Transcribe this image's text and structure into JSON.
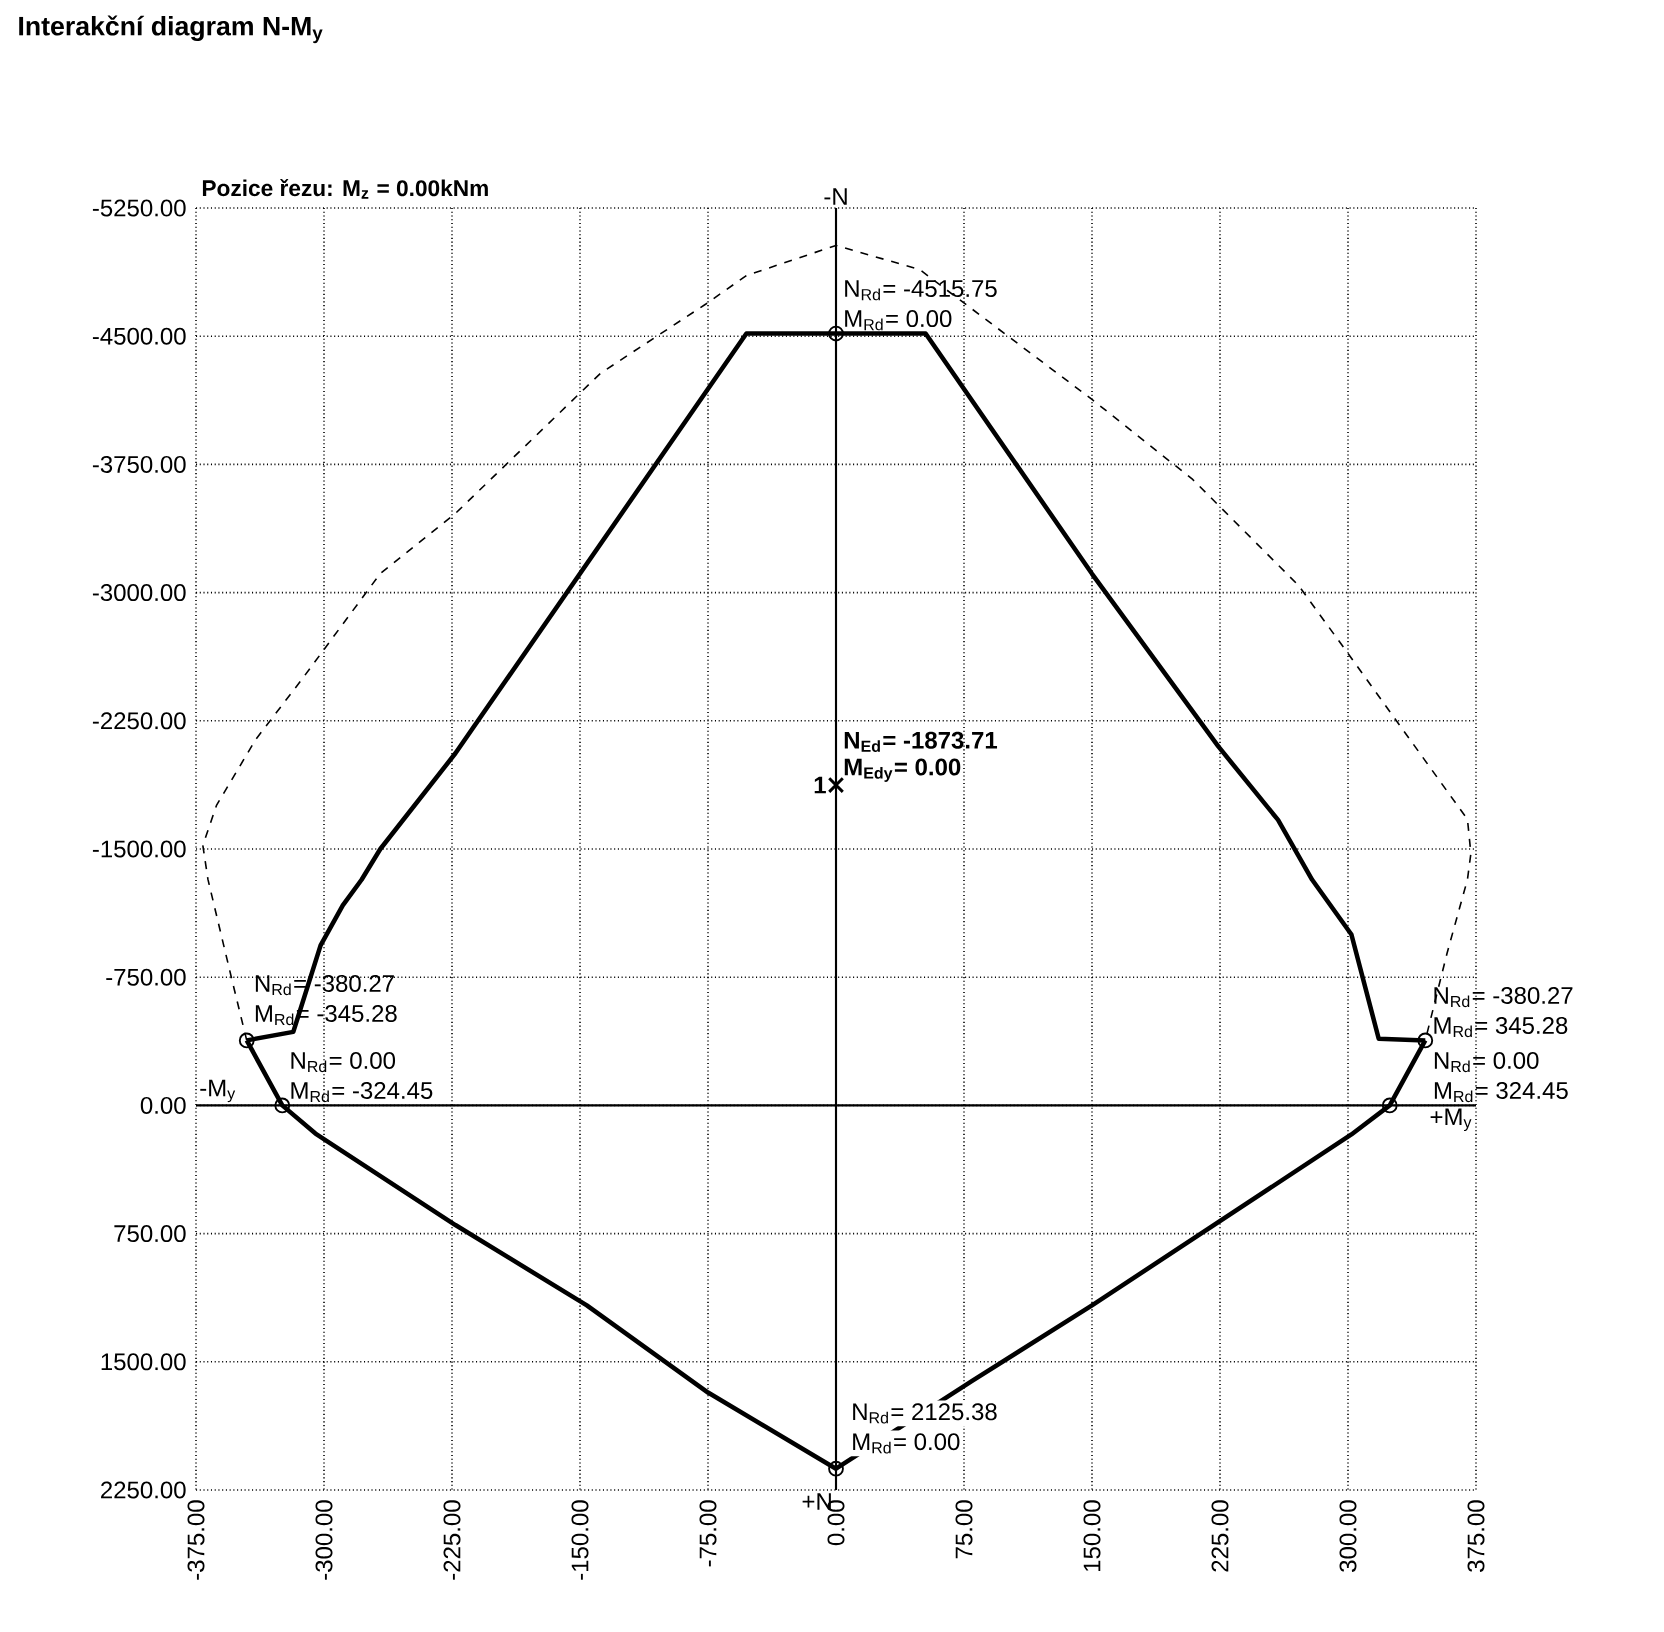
{
  "chart_data": {
    "type": "line",
    "title": "Interakční diagram N-M$_{y}$",
    "subtitle": "Pozice řezu: M$_{z}$ = 0.00kNm",
    "xlim": [
      -375,
      375
    ],
    "ylim": [
      2250,
      -5250
    ],
    "xticks": [
      {
        "value": -375,
        "label": "-375.00"
      },
      {
        "value": -300,
        "label": "-300.00"
      },
      {
        "value": -225,
        "label": "-225.00"
      },
      {
        "value": -150,
        "label": "-150.00"
      },
      {
        "value": -75,
        "label": "-75.00"
      },
      {
        "value": 0,
        "label": "0.00"
      },
      {
        "value": 75,
        "label": "75.00"
      },
      {
        "value": 150,
        "label": "150.00"
      },
      {
        "value": 225,
        "label": "225.00"
      },
      {
        "value": 300,
        "label": "300.00"
      },
      {
        "value": 375,
        "label": "375.00"
      }
    ],
    "yticks": [
      {
        "value": -5250,
        "label": "-5250.00"
      },
      {
        "value": -4500,
        "label": "-4500.00"
      },
      {
        "value": -3750,
        "label": "-3750.00"
      },
      {
        "value": -3000,
        "label": "-3000.00"
      },
      {
        "value": -2250,
        "label": "-2250.00"
      },
      {
        "value": -1500,
        "label": "-1500.00"
      },
      {
        "value": -750,
        "label": "-750.00"
      },
      {
        "value": 0,
        "label": "0.00"
      },
      {
        "value": 750,
        "label": "750.00"
      },
      {
        "value": 1500,
        "label": "1500.00"
      },
      {
        "value": 2250,
        "label": "2250.00"
      }
    ],
    "grid": true,
    "series": [
      {
        "color": "#000000",
        "line_style": "dashed",
        "x": [
          -345.28,
          -354,
          -368,
          -371,
          -363,
          -340,
          -313,
          -267,
          -223,
          -138,
          -76,
          -52.5,
          0,
          49,
          150,
          209,
          271,
          300,
          370,
          372,
          370,
          358,
          345.28
        ],
        "values": [
          -380.27,
          -737,
          -1322,
          -1521,
          -1755,
          -2141,
          -2492,
          -3112,
          -3463,
          -4283,
          -4690,
          -4855,
          -5031,
          -4890,
          -4130,
          -3662,
          -3042,
          -2644,
          -1673,
          -1474,
          -1322,
          -889,
          -380.27
        ]
      },
      {
        "color": "#000000",
        "line_style": "solid",
        "x": [
          -345.28,
          -318,
          -302,
          -289,
          -278,
          -267,
          -223,
          -52.5,
          0,
          52.5,
          150,
          224,
          259,
          279,
          302,
          318,
          345.28
        ],
        "values": [
          -380.27,
          -430,
          -936,
          -1170,
          -1320,
          -1500,
          -2060,
          -4515.75,
          -4515.75,
          -4515.75,
          -3110,
          -2100,
          -1670,
          -1320,
          -1000,
          -390,
          -380.27
        ]
      },
      {
        "color": "#000000",
        "line_style": "solid",
        "x": [
          -345.28,
          -324.45,
          -305,
          -223,
          -146,
          -75,
          0,
          80,
          150,
          302,
          324.45,
          345.28
        ],
        "values": [
          -380.27,
          0,
          165,
          700,
          1170,
          1680,
          2125.38,
          1610,
          1170,
          170,
          0,
          -380.27
        ]
      },
      {
        "type": "scatter",
        "color": "#000000",
        "marker": "circle",
        "x": [
          0,
          -345.28,
          345.28,
          -324.45,
          324.45,
          0
        ],
        "values": [
          -4515.75,
          -380.27,
          -380.27,
          0,
          0,
          2125.38
        ]
      },
      {
        "type": "scatter",
        "name": "1",
        "color": "#000000",
        "marker": "cross",
        "x": [
          0
        ],
        "values": [
          -1873.71
        ]
      }
    ],
    "annotations": [
      {
        "text": "N$_{Rd}$= -4515.75",
        "x": 0,
        "y": -4515.75
      },
      {
        "text": "M$_{Rd}$= 0.00",
        "x": 0,
        "y": -4515.75
      },
      {
        "text": "N$_{Ed}$= -1873.71",
        "x": 0,
        "y": -1873.71
      },
      {
        "text": "M$_{Edy}$= 0.00",
        "x": 0,
        "y": -1873.71
      },
      {
        "text": "N$_{Rd}$= -380.27",
        "x": -345.28,
        "y": -380.27
      },
      {
        "text": "M$_{Rd}$= -345.28",
        "x": -345.28,
        "y": -380.27
      },
      {
        "text": "N$_{Rd}$= 0.00",
        "x": -324.45,
        "y": 0
      },
      {
        "text": "M$_{Rd}$= -324.45",
        "x": -324.45,
        "y": 0
      },
      {
        "text": "N$_{Rd}$= -380.27",
        "x": 345.28,
        "y": -380.27
      },
      {
        "text": "M$_{Rd}$= 345.28",
        "x": 345.28,
        "y": -380.27
      },
      {
        "text": "N$_{Rd}$= 0.00",
        "x": 324.45,
        "y": 0
      },
      {
        "text": "M$_{Rd}$= 324.45",
        "x": 324.45,
        "y": 0
      },
      {
        "text": "N$_{Rd}$= 2125.38",
        "x": 0,
        "y": 2125.38
      },
      {
        "text": "M$_{Rd}$= 0.00",
        "x": 0,
        "y": 2125.38
      },
      "-N",
      "+N",
      "-M$_{y}$",
      "+M$_{y}$"
    ]
  }
}
